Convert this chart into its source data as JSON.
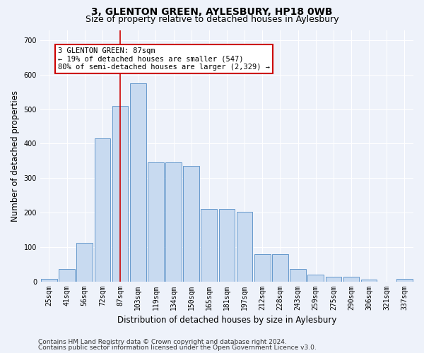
{
  "title": "3, GLENTON GREEN, AYLESBURY, HP18 0WB",
  "subtitle": "Size of property relative to detached houses in Aylesbury",
  "xlabel": "Distribution of detached houses by size in Aylesbury",
  "ylabel": "Number of detached properties",
  "categories": [
    "25sqm",
    "41sqm",
    "56sqm",
    "72sqm",
    "87sqm",
    "103sqm",
    "119sqm",
    "134sqm",
    "150sqm",
    "165sqm",
    "181sqm",
    "197sqm",
    "212sqm",
    "228sqm",
    "243sqm",
    "259sqm",
    "275sqm",
    "290sqm",
    "306sqm",
    "321sqm",
    "337sqm"
  ],
  "values": [
    8,
    35,
    112,
    415,
    510,
    575,
    345,
    345,
    335,
    210,
    210,
    203,
    80,
    80,
    35,
    20,
    13,
    13,
    5,
    0,
    8
  ],
  "bar_color": "#c8daf0",
  "bar_edge_color": "#6699cc",
  "red_line_index": 4,
  "annotation_text": "3 GLENTON GREEN: 87sqm\n← 19% of detached houses are smaller (547)\n80% of semi-detached houses are larger (2,329) →",
  "annotation_box_color": "#ffffff",
  "annotation_box_edge_color": "#cc0000",
  "ylim": [
    0,
    730
  ],
  "yticks": [
    0,
    100,
    200,
    300,
    400,
    500,
    600,
    700
  ],
  "footer1": "Contains HM Land Registry data © Crown copyright and database right 2024.",
  "footer2": "Contains public sector information licensed under the Open Government Licence v3.0.",
  "bg_color": "#eef2fa",
  "plot_bg_color": "#eef2fa",
  "grid_color": "#ffffff",
  "title_fontsize": 10,
  "subtitle_fontsize": 9,
  "axis_label_fontsize": 8.5,
  "tick_fontsize": 7,
  "footer_fontsize": 6.5
}
